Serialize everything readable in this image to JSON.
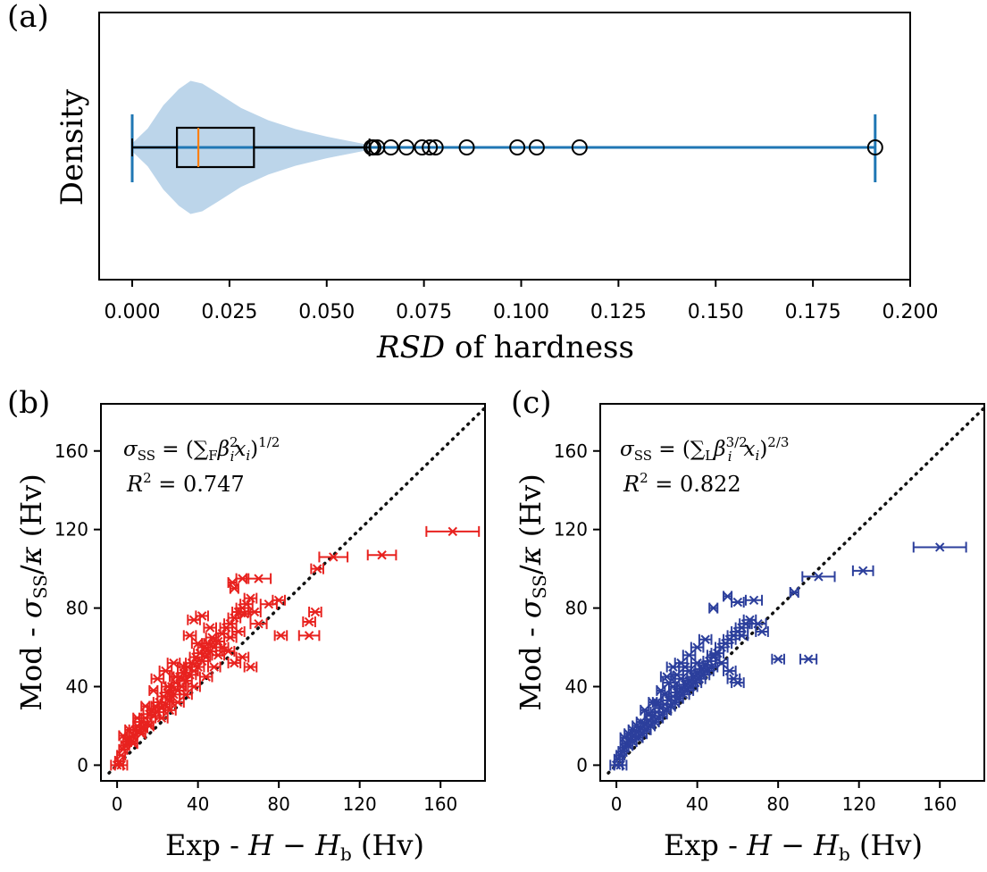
{
  "chart_data": [
    {
      "id": "a",
      "type": "violin-box",
      "panel_label": "(a)",
      "ylabel": "Density",
      "xlabel_italic": "RSD",
      "xlabel_rest": " of hardness",
      "xlim": [
        -0.0085,
        0.2
      ],
      "xticks": [
        "0.000",
        "0.025",
        "0.050",
        "0.075",
        "0.100",
        "0.125",
        "0.150",
        "0.175",
        "0.200"
      ],
      "xtick_values": [
        0.0,
        0.025,
        0.05,
        0.075,
        0.1,
        0.125,
        0.15,
        0.175,
        0.2
      ],
      "violin_profile": [
        [
          0.0,
          0.06
        ],
        [
          0.004,
          0.28
        ],
        [
          0.008,
          0.62
        ],
        [
          0.012,
          0.86
        ],
        [
          0.015,
          0.98
        ],
        [
          0.018,
          0.94
        ],
        [
          0.022,
          0.8
        ],
        [
          0.028,
          0.58
        ],
        [
          0.035,
          0.4
        ],
        [
          0.042,
          0.27
        ],
        [
          0.05,
          0.16
        ],
        [
          0.057,
          0.08
        ],
        [
          0.061,
          0.035
        ],
        [
          0.062,
          0.012
        ],
        [
          0.07,
          0.008
        ],
        [
          0.1,
          0.008
        ],
        [
          0.15,
          0.008
        ],
        [
          0.191,
          0.008
        ]
      ],
      "violin_extent": [
        0.0,
        0.191
      ],
      "box": {
        "whisker_low": 0.0,
        "q1": 0.0115,
        "median": 0.017,
        "q3": 0.0313,
        "whisker_high": 0.061
      },
      "outliers": [
        0.0615,
        0.062,
        0.063,
        0.0665,
        0.0705,
        0.0745,
        0.0765,
        0.078,
        0.086,
        0.099,
        0.104,
        0.115,
        0.191
      ],
      "colors": {
        "violin_fill": "#bcd5ea",
        "line": "#1f77b4",
        "median": "#ff7f0e",
        "box": "#000000"
      }
    },
    {
      "id": "b",
      "type": "scatter-errorbar",
      "panel_label": "(b)",
      "formula_sigma": "σ",
      "formula_sigma_sub": "SS",
      "formula_eq": " = (",
      "formula_sum": "∑",
      "formula_sum_sub": "F",
      "formula_beta": "β",
      "formula_beta_sup": "2",
      "formula_i": "i",
      "formula_x": "x",
      "formula_x_sub": "i",
      "formula_close": ")",
      "formula_exp": "1/2",
      "r2_label": "R",
      "r2_sup": "2",
      "r2_value": " = 0.747",
      "xlabel_parts": [
        "Exp - ",
        "H",
        " − ",
        "H",
        "b",
        " (Hv)"
      ],
      "ylabel_parts": [
        "Mod - ",
        "σ",
        "SS",
        "/",
        "κ",
        " (Hv)"
      ],
      "xlim": [
        -8,
        182
      ],
      "ylim": [
        -8,
        184
      ],
      "xticks": [
        0,
        40,
        80,
        120,
        160
      ],
      "yticks": [
        0,
        40,
        80,
        120,
        160
      ],
      "color": "#e8221f",
      "points": [
        [
          0,
          0,
          3
        ],
        [
          2,
          0,
          3
        ],
        [
          1,
          2,
          2
        ],
        [
          2,
          5,
          2
        ],
        [
          3,
          8,
          2
        ],
        [
          4,
          10,
          2
        ],
        [
          5,
          12,
          2
        ],
        [
          6,
          14,
          2
        ],
        [
          7,
          12,
          2
        ],
        [
          8,
          15,
          2
        ],
        [
          9,
          18,
          3
        ],
        [
          10,
          20,
          2
        ],
        [
          11,
          17,
          2
        ],
        [
          12,
          22,
          3
        ],
        [
          13,
          19,
          2
        ],
        [
          14,
          24,
          3
        ],
        [
          15,
          21,
          2
        ],
        [
          16,
          26,
          3
        ],
        [
          17,
          28,
          2
        ],
        [
          18,
          25,
          3
        ],
        [
          19,
          30,
          2
        ],
        [
          20,
          27,
          3
        ],
        [
          21,
          32,
          3
        ],
        [
          22,
          29,
          2
        ],
        [
          23,
          35,
          3
        ],
        [
          24,
          31,
          2
        ],
        [
          25,
          37,
          3
        ],
        [
          26,
          33,
          2
        ],
        [
          27,
          40,
          3
        ],
        [
          28,
          36,
          3
        ],
        [
          29,
          42,
          2
        ],
        [
          30,
          38,
          3
        ],
        [
          31,
          45,
          3
        ],
        [
          32,
          40,
          2
        ],
        [
          33,
          47,
          3
        ],
        [
          34,
          43,
          3
        ],
        [
          35,
          50,
          2
        ],
        [
          36,
          46,
          3
        ],
        [
          37,
          52,
          3
        ],
        [
          38,
          48,
          2
        ],
        [
          39,
          55,
          3
        ],
        [
          40,
          50,
          3
        ],
        [
          41,
          57,
          3
        ],
        [
          42,
          53,
          3
        ],
        [
          43,
          60,
          3
        ],
        [
          44,
          55,
          2
        ],
        [
          45,
          62,
          3
        ],
        [
          46,
          58,
          3
        ],
        [
          47,
          65,
          3
        ],
        [
          48,
          60,
          3
        ],
        [
          50,
          63,
          3
        ],
        [
          52,
          67,
          3
        ],
        [
          54,
          70,
          3
        ],
        [
          56,
          72,
          3
        ],
        [
          58,
          75,
          3
        ],
        [
          60,
          78,
          3
        ],
        [
          62,
          80,
          3
        ],
        [
          64,
          82,
          3
        ],
        [
          66,
          85,
          3
        ],
        [
          68,
          78,
          3
        ],
        [
          70,
          72,
          4
        ],
        [
          36,
          66,
          3
        ],
        [
          38,
          74,
          3
        ],
        [
          42,
          76,
          3
        ],
        [
          46,
          70,
          3
        ],
        [
          50,
          56,
          3
        ],
        [
          55,
          58,
          3
        ],
        [
          58,
          52,
          3
        ],
        [
          62,
          55,
          3
        ],
        [
          66,
          50,
          3
        ],
        [
          20,
          44,
          3
        ],
        [
          24,
          48,
          3
        ],
        [
          28,
          52,
          3
        ],
        [
          18,
          38,
          2
        ],
        [
          14,
          30,
          2
        ],
        [
          10,
          24,
          2
        ],
        [
          6,
          18,
          2
        ],
        [
          3,
          15,
          2
        ],
        [
          8,
          11,
          2
        ],
        [
          12,
          16,
          2
        ],
        [
          16,
          20,
          2
        ],
        [
          22,
          24,
          3
        ],
        [
          26,
          28,
          3
        ],
        [
          30,
          32,
          3
        ],
        [
          34,
          36,
          3
        ],
        [
          38,
          40,
          3
        ],
        [
          44,
          45,
          3
        ],
        [
          48,
          50,
          3
        ],
        [
          52,
          60,
          3
        ],
        [
          56,
          65,
          3
        ],
        [
          60,
          68,
          3
        ],
        [
          25,
          40,
          3
        ],
        [
          29,
          45,
          3
        ],
        [
          33,
          50,
          3
        ],
        [
          40,
          62,
          3
        ],
        [
          57,
          93,
          2
        ],
        [
          58,
          90,
          2
        ],
        [
          62,
          95,
          3
        ],
        [
          70,
          95,
          6
        ],
        [
          63,
          77,
          3
        ],
        [
          75,
          82,
          4
        ],
        [
          80,
          84,
          3
        ],
        [
          81,
          66,
          3
        ],
        [
          95,
          66,
          5
        ],
        [
          95,
          73,
          3
        ],
        [
          98,
          78,
          3
        ],
        [
          99,
          100,
          3
        ],
        [
          107,
          106,
          7
        ],
        [
          131,
          107,
          7
        ],
        [
          166,
          119,
          13
        ]
      ],
      "marker": "x"
    },
    {
      "id": "c",
      "type": "scatter-errorbar",
      "panel_label": "(c)",
      "formula_sigma": "σ",
      "formula_sigma_sub": "SS",
      "formula_eq": " = (",
      "formula_sum": "∑",
      "formula_sum_sub": "L",
      "formula_beta": "β",
      "formula_beta_sup": "3/2",
      "formula_i": "i",
      "formula_x": "x",
      "formula_x_sub": "i",
      "formula_close": ")",
      "formula_exp": "2/3",
      "r2_label": "R",
      "r2_sup": "2",
      "r2_value": " = 0.822",
      "xlabel_parts": [
        "Exp - ",
        "H",
        " − ",
        "H",
        "b",
        " (Hv)"
      ],
      "ylabel_parts": [
        "Mod - ",
        "σ",
        "SS",
        "/",
        "κ",
        " (Hv)"
      ],
      "xlim": [
        -8,
        182
      ],
      "ylim": [
        -8,
        184
      ],
      "xticks": [
        0,
        40,
        80,
        120,
        160
      ],
      "yticks": [
        0,
        40,
        80,
        120,
        160
      ],
      "color": "#2c3f9c",
      "points": [
        [
          0,
          0,
          3
        ],
        [
          2,
          0,
          3
        ],
        [
          1,
          3,
          2
        ],
        [
          2,
          5,
          2
        ],
        [
          3,
          7,
          2
        ],
        [
          4,
          9,
          2
        ],
        [
          5,
          11,
          2
        ],
        [
          6,
          10,
          2
        ],
        [
          7,
          13,
          2
        ],
        [
          8,
          12,
          2
        ],
        [
          9,
          15,
          2
        ],
        [
          10,
          17,
          2
        ],
        [
          11,
          14,
          2
        ],
        [
          12,
          19,
          2
        ],
        [
          13,
          16,
          2
        ],
        [
          14,
          21,
          2
        ],
        [
          15,
          18,
          2
        ],
        [
          16,
          23,
          2
        ],
        [
          17,
          20,
          2
        ],
        [
          18,
          25,
          3
        ],
        [
          19,
          22,
          2
        ],
        [
          20,
          27,
          3
        ],
        [
          21,
          24,
          2
        ],
        [
          22,
          29,
          3
        ],
        [
          23,
          26,
          2
        ],
        [
          24,
          31,
          3
        ],
        [
          25,
          28,
          2
        ],
        [
          26,
          33,
          3
        ],
        [
          27,
          30,
          2
        ],
        [
          28,
          35,
          3
        ],
        [
          29,
          32,
          2
        ],
        [
          30,
          37,
          3
        ],
        [
          31,
          34,
          2
        ],
        [
          32,
          39,
          3
        ],
        [
          33,
          36,
          3
        ],
        [
          34,
          41,
          3
        ],
        [
          35,
          38,
          3
        ],
        [
          36,
          43,
          3
        ],
        [
          37,
          40,
          3
        ],
        [
          38,
          45,
          3
        ],
        [
          39,
          42,
          3
        ],
        [
          40,
          47,
          3
        ],
        [
          41,
          44,
          3
        ],
        [
          42,
          49,
          3
        ],
        [
          43,
          46,
          3
        ],
        [
          44,
          51,
          3
        ],
        [
          45,
          48,
          3
        ],
        [
          46,
          53,
          3
        ],
        [
          47,
          50,
          3
        ],
        [
          48,
          55,
          3
        ],
        [
          50,
          57,
          3
        ],
        [
          52,
          60,
          3
        ],
        [
          54,
          62,
          3
        ],
        [
          56,
          64,
          3
        ],
        [
          58,
          66,
          3
        ],
        [
          60,
          68,
          3
        ],
        [
          62,
          70,
          3
        ],
        [
          64,
          72,
          3
        ],
        [
          66,
          74,
          3
        ],
        [
          20,
          32,
          2
        ],
        [
          24,
          36,
          2
        ],
        [
          28,
          40,
          2
        ],
        [
          32,
          44,
          3
        ],
        [
          36,
          48,
          3
        ],
        [
          40,
          52,
          3
        ],
        [
          16,
          26,
          2
        ],
        [
          12,
          22,
          2
        ],
        [
          8,
          18,
          2
        ],
        [
          4,
          14,
          2
        ],
        [
          14,
          28,
          2
        ],
        [
          18,
          32,
          2
        ],
        [
          22,
          38,
          2
        ],
        [
          26,
          42,
          3
        ],
        [
          30,
          46,
          3
        ],
        [
          34,
          50,
          3
        ],
        [
          10,
          20,
          2
        ],
        [
          6,
          16,
          2
        ],
        [
          40,
          60,
          3
        ],
        [
          44,
          64,
          3
        ],
        [
          48,
          56,
          3
        ],
        [
          52,
          52,
          3
        ],
        [
          56,
          48,
          3
        ],
        [
          58,
          44,
          3
        ],
        [
          60,
          42,
          3
        ],
        [
          25,
          45,
          3
        ],
        [
          28,
          50,
          3
        ],
        [
          32,
          52,
          3
        ],
        [
          36,
          56,
          3
        ],
        [
          48,
          80,
          2
        ],
        [
          55,
          86,
          2
        ],
        [
          60,
          83,
          3
        ],
        [
          68,
          84,
          4
        ],
        [
          62,
          66,
          3
        ],
        [
          70,
          72,
          4
        ],
        [
          72,
          68,
          3
        ],
        [
          80,
          54,
          3
        ],
        [
          95,
          54,
          4
        ],
        [
          88,
          88,
          2
        ],
        [
          100,
          96,
          8
        ],
        [
          122,
          99,
          5
        ],
        [
          160,
          111,
          13
        ]
      ],
      "marker": "x"
    }
  ]
}
